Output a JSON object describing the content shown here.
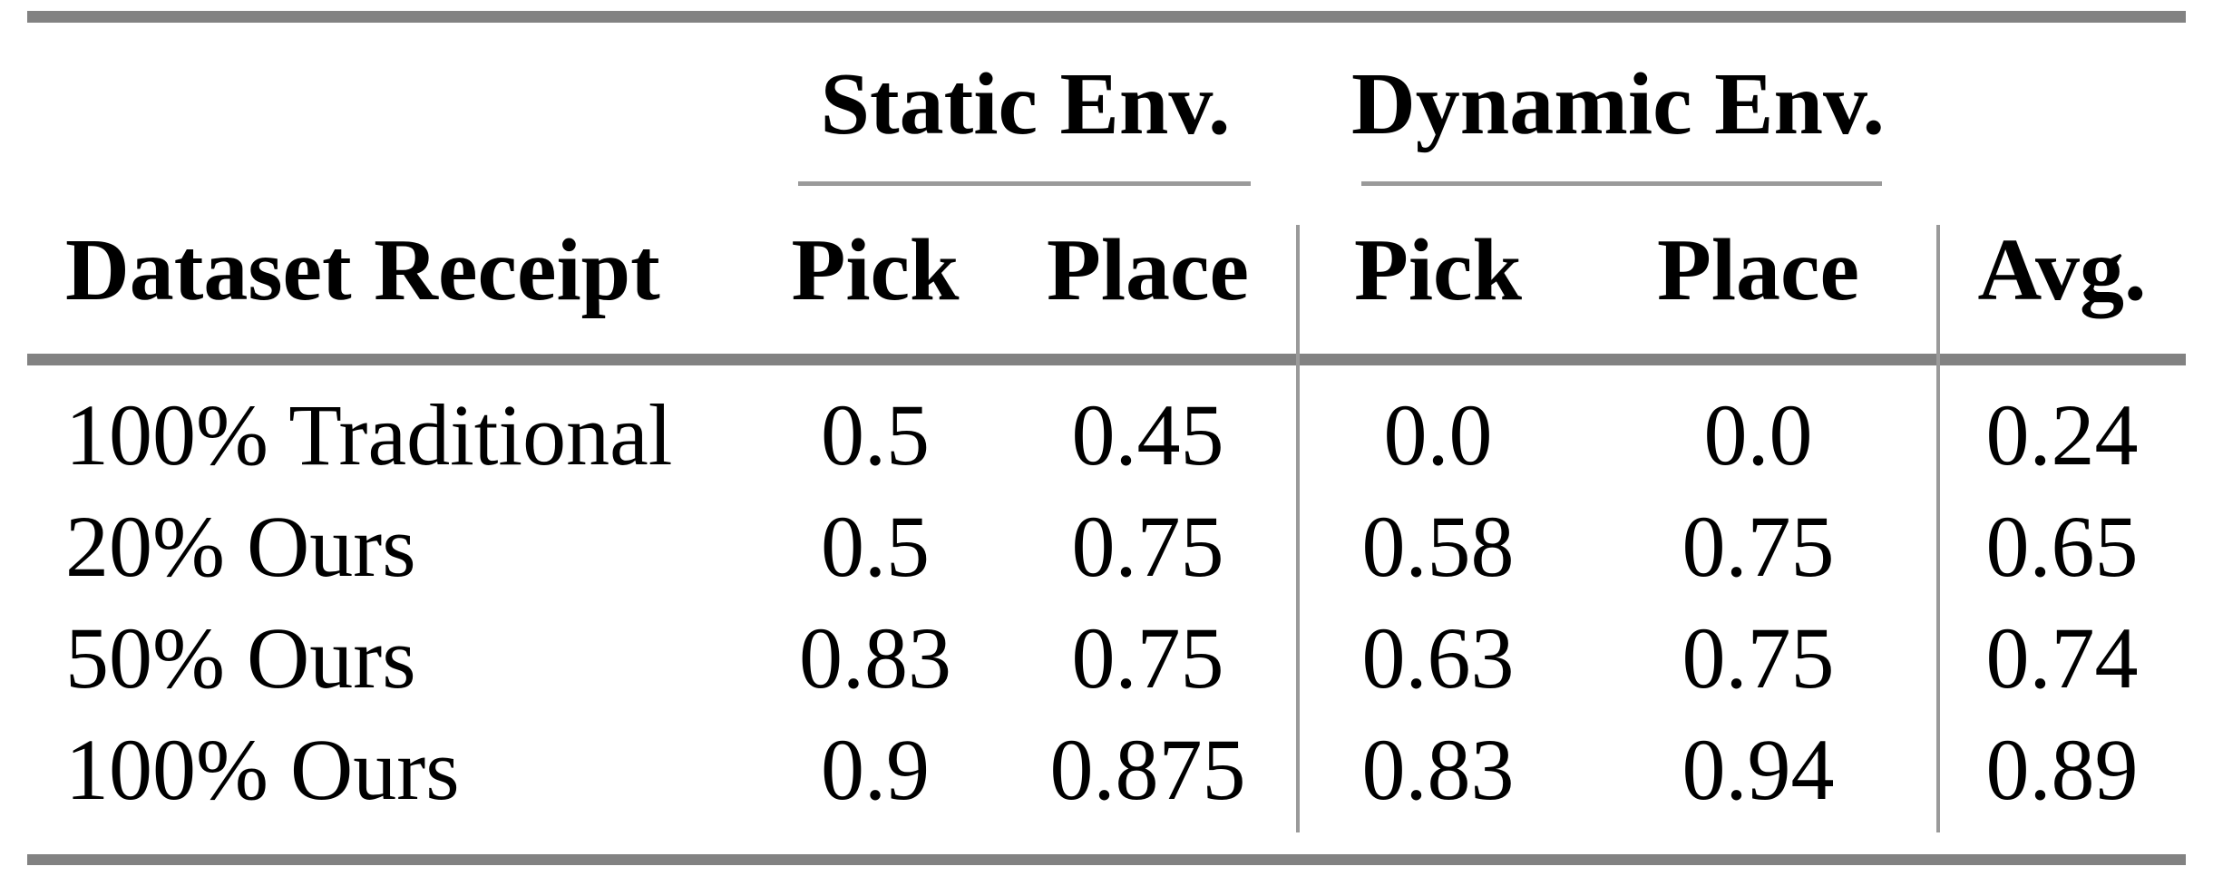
{
  "table": {
    "group_headers": {
      "static": "Static Env.",
      "dynamic": "Dynamic Env."
    },
    "columns": {
      "row_header": "Dataset Receipt",
      "static_pick": "Pick",
      "static_place": "Place",
      "dynamic_pick": "Pick",
      "dynamic_place": "Place",
      "avg": "Avg."
    },
    "rows": [
      {
        "label": "100% Traditional",
        "values": [
          "0.5",
          "0.45",
          "0.0",
          "0.0",
          "0.24"
        ]
      },
      {
        "label": "20% Ours",
        "values": [
          "0.5",
          "0.75",
          "0.58",
          "0.75",
          "0.65"
        ]
      },
      {
        "label": "50% Ours",
        "values": [
          "0.83",
          "0.75",
          "0.63",
          "0.75",
          "0.74"
        ]
      },
      {
        "label": "100% Ours",
        "values": [
          "0.9",
          "0.875",
          "0.83",
          "0.94",
          "0.89"
        ]
      }
    ],
    "colors": {
      "rule_thick": "#828282",
      "rule_thin": "#9a9a9a",
      "text": "#000000",
      "background": "#ffffff"
    }
  },
  "chart_data": {
    "type": "table",
    "title": "",
    "column_groups": [
      "",
      "Static Env.",
      "Static Env.",
      "Dynamic Env.",
      "Dynamic Env.",
      ""
    ],
    "columns": [
      "Dataset Receipt",
      "Pick",
      "Place",
      "Pick",
      "Place",
      "Avg."
    ],
    "rows": [
      [
        "100% Traditional",
        0.5,
        0.45,
        0.0,
        0.0,
        0.24
      ],
      [
        "20% Ours",
        0.5,
        0.75,
        0.58,
        0.75,
        0.65
      ],
      [
        "50% Ours",
        0.83,
        0.75,
        0.63,
        0.75,
        0.74
      ],
      [
        "100% Ours",
        0.9,
        0.875,
        0.83,
        0.94,
        0.89
      ]
    ]
  }
}
